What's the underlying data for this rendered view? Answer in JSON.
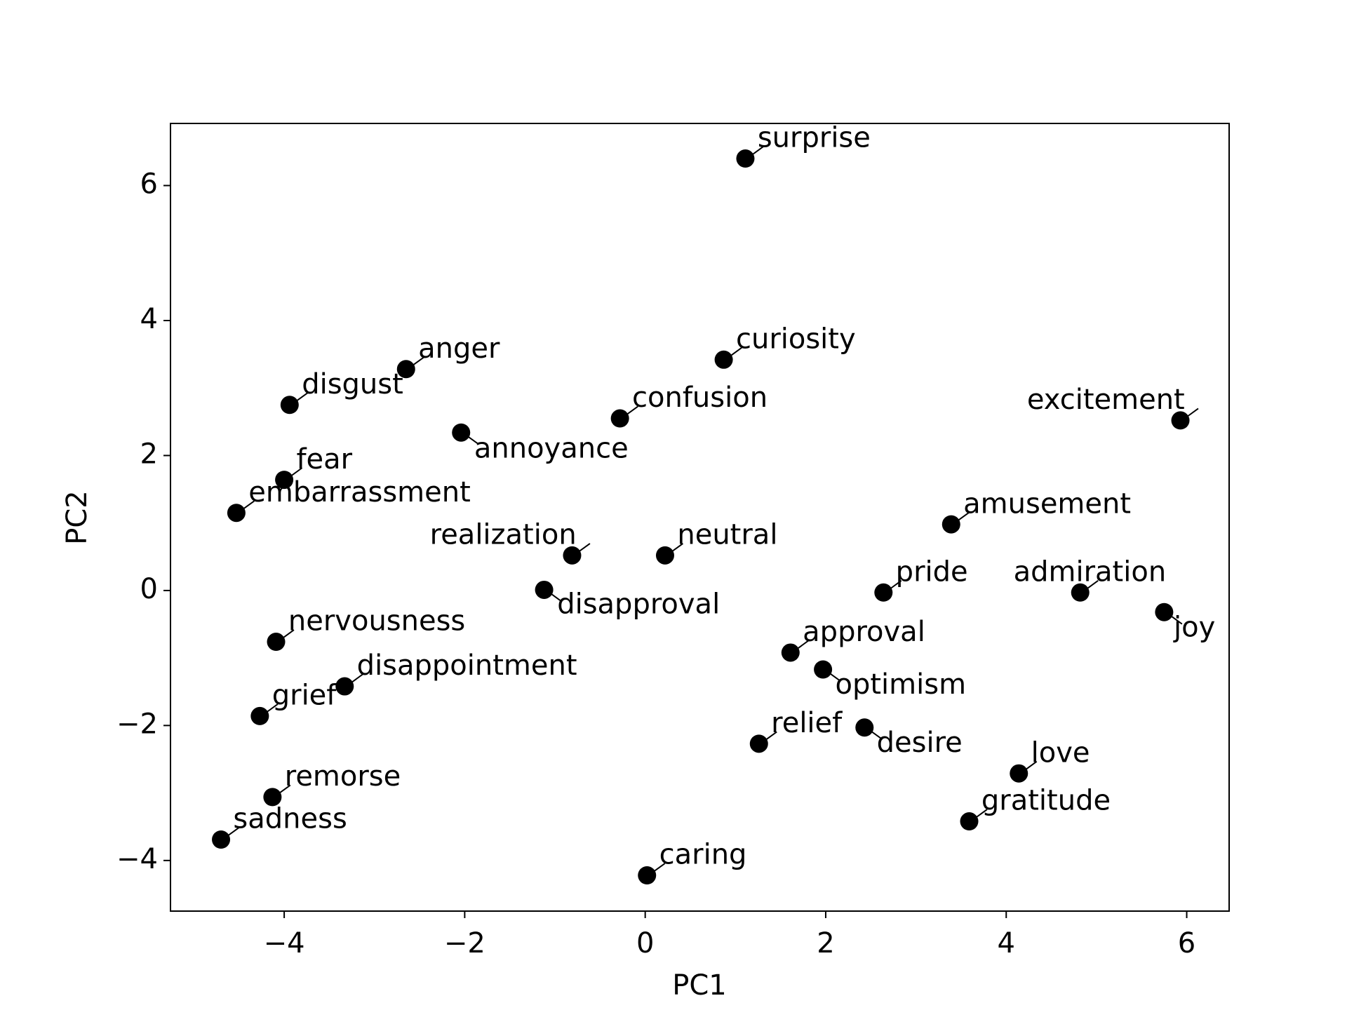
{
  "chart_data": {
    "type": "scatter",
    "x_label": "PC1",
    "y_label": "PC2",
    "color": "#000000",
    "xlim": [
      -5.26,
      6.47
    ],
    "ylim": [
      -4.75,
      6.92
    ],
    "xticks": [
      {
        "value": -4,
        "label": "−4"
      },
      {
        "value": -2,
        "label": "−2"
      },
      0,
      2,
      4,
      6
    ],
    "yticks": [
      {
        "value": -4,
        "label": "−4"
      },
      {
        "value": -2,
        "label": "−2"
      },
      0,
      2,
      4,
      6
    ],
    "point_labels": [
      "surprise",
      "curiosity",
      "anger",
      "disgust",
      "confusion",
      "excitement",
      "annoyance",
      "fear",
      "embarrassment",
      "amusement",
      "realization",
      "neutral",
      "disapproval",
      "pride",
      "admiration",
      "joy",
      "nervousness",
      "approval",
      "optimism",
      "disappointment",
      "grief",
      "desire",
      "relief",
      "love",
      "remorse",
      "gratitude",
      "sadness",
      "caring"
    ],
    "x": [
      1.11,
      0.87,
      -2.65,
      -3.94,
      -0.28,
      5.93,
      -2.04,
      -4.0,
      -4.53,
      3.39,
      -0.81,
      0.22,
      -1.12,
      2.64,
      4.82,
      5.75,
      -4.09,
      1.61,
      1.97,
      -3.33,
      -4.27,
      2.43,
      1.26,
      4.14,
      -4.13,
      3.59,
      -4.7,
      0.02
    ],
    "values": [
      6.4,
      3.42,
      3.28,
      2.75,
      2.55,
      2.52,
      2.34,
      1.64,
      1.15,
      0.98,
      0.52,
      0.52,
      0.01,
      -0.03,
      -0.03,
      -0.32,
      -0.76,
      -0.92,
      -1.17,
      -1.42,
      -1.86,
      -2.03,
      -2.27,
      -2.71,
      -3.06,
      -3.42,
      -3.69,
      -4.22
    ]
  }
}
